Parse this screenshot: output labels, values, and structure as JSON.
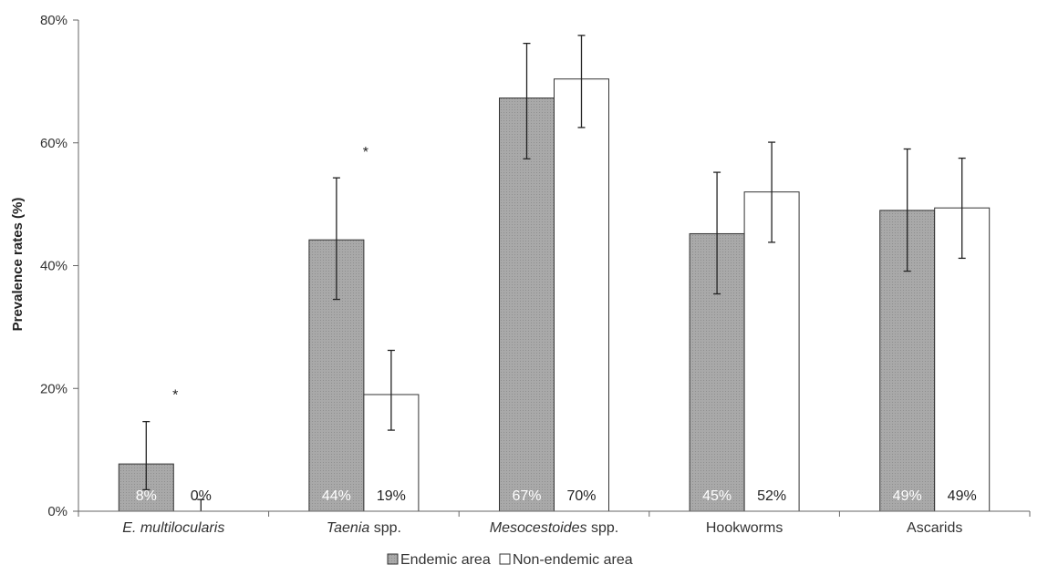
{
  "chart_data": {
    "type": "bar",
    "title": "",
    "xlabel": "",
    "ylabel": "Prevalence rates (%)",
    "ylim": [
      0,
      80
    ],
    "y_ticks": [
      "0%",
      "20%",
      "40%",
      "60%",
      "80%"
    ],
    "categories": [
      {
        "name": "E. multilocularis",
        "italic_part": "E. multilocularis",
        "rest": ""
      },
      {
        "name": "Taenia spp.",
        "italic_part": "Taenia",
        "rest": " spp."
      },
      {
        "name": "Mesocestoides spp.",
        "italic_part": "Mesocestoides",
        "rest": " spp."
      },
      {
        "name": "Hookworms",
        "italic_part": "",
        "rest": "Hookworms"
      },
      {
        "name": "Ascarids",
        "italic_part": "",
        "rest": "Ascarids"
      }
    ],
    "series": [
      {
        "name": "Endemic area",
        "color": "#a6a6a6",
        "values": [
          7.7,
          44.2,
          67.3,
          45.2,
          49.0
        ],
        "labels": [
          "8%",
          "44%",
          "67%",
          "45%",
          "49%"
        ],
        "error_low": [
          3.5,
          34.5,
          57.4,
          35.4,
          39.1
        ],
        "error_high": [
          14.6,
          54.3,
          76.2,
          55.2,
          59.0
        ]
      },
      {
        "name": "Non-endemic area",
        "color": "#ffffff",
        "values": [
          0,
          19.0,
          70.4,
          52.0,
          49.4
        ],
        "labels": [
          "0%",
          "19%",
          "70%",
          "52%",
          "49%"
        ],
        "error_low": [
          0,
          13.2,
          62.5,
          43.8,
          41.2
        ],
        "error_high": [
          1.9,
          26.2,
          77.5,
          60.1,
          57.5
        ]
      }
    ],
    "annotations": [
      {
        "text": "*",
        "category_index": 0,
        "y": 20
      },
      {
        "text": "*",
        "category_index": 1,
        "y": 59.5
      }
    ],
    "legend_position": "bottom"
  }
}
